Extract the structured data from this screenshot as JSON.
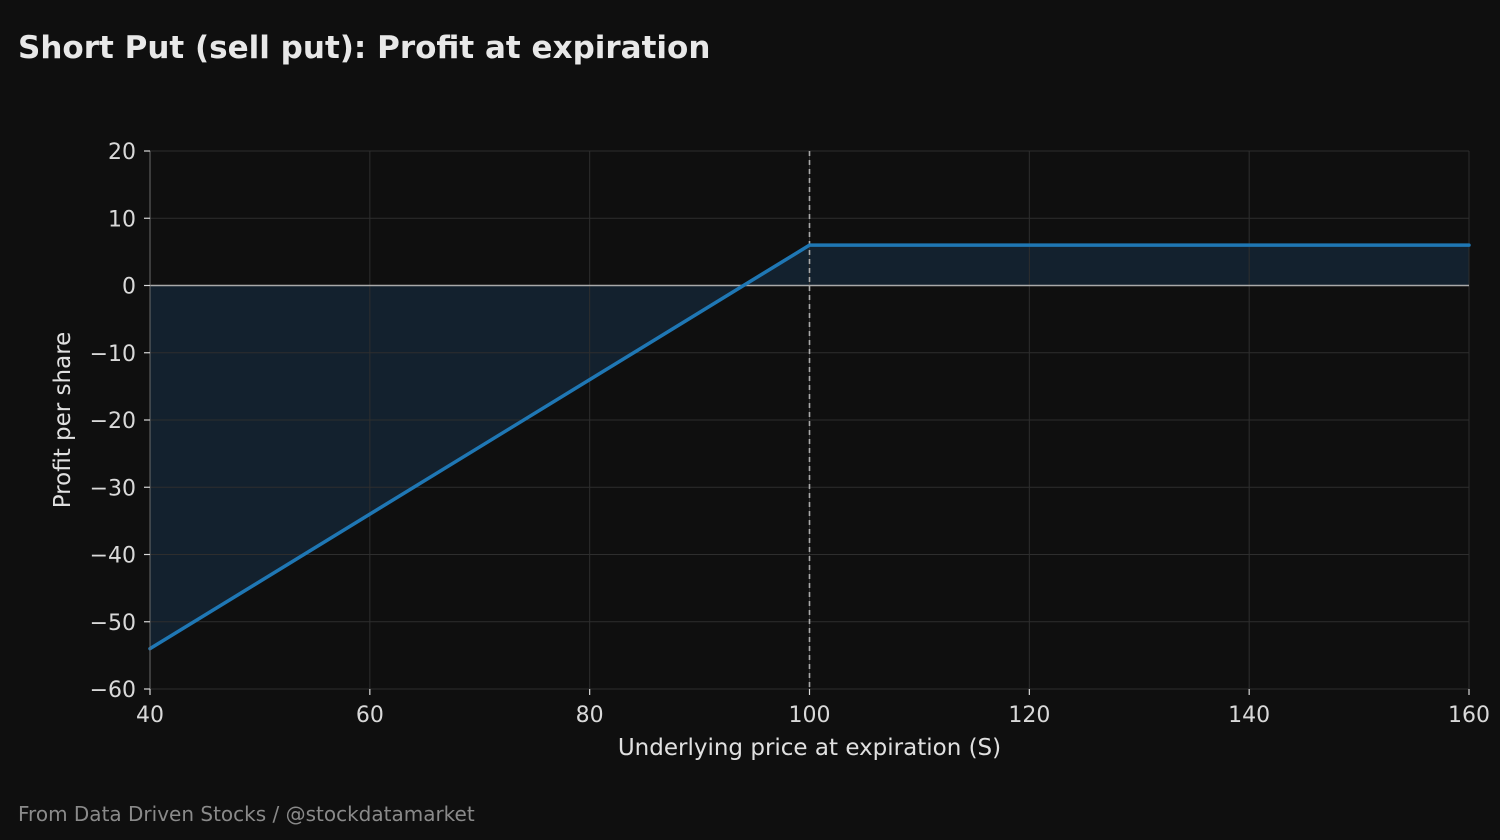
{
  "footer": "From Data Driven Stocks / @stockdatamarket",
  "chart_data": {
    "type": "line",
    "title": "Short Put (sell put): Profit at expiration",
    "xlabel": "Underlying price at expiration (S)",
    "ylabel": "Profit per share",
    "xlim": [
      40,
      160
    ],
    "ylim": [
      -60,
      20
    ],
    "x_ticks": [
      40,
      60,
      80,
      100,
      120,
      140,
      160
    ],
    "y_ticks": [
      20,
      10,
      0,
      -10,
      -20,
      -30,
      -40,
      -50,
      -60
    ],
    "grid": true,
    "legend": "none",
    "reference_lines": [
      {
        "orientation": "vertical",
        "x": 100,
        "style": "dashed"
      },
      {
        "orientation": "horizontal",
        "y": 0,
        "style": "solid"
      }
    ],
    "series": [
      {
        "x": [
          40,
          100,
          160
        ],
        "y": [
          -54,
          6,
          6
        ],
        "color": "#1f77b4",
        "fill_to_zero": true,
        "fill_color": "#13212e"
      }
    ],
    "colors": {
      "background": "#0f0f0f",
      "grid": "#2e2e2e",
      "zero_line": "#a9a9a9",
      "strike_line": "#a9a9a9"
    }
  }
}
